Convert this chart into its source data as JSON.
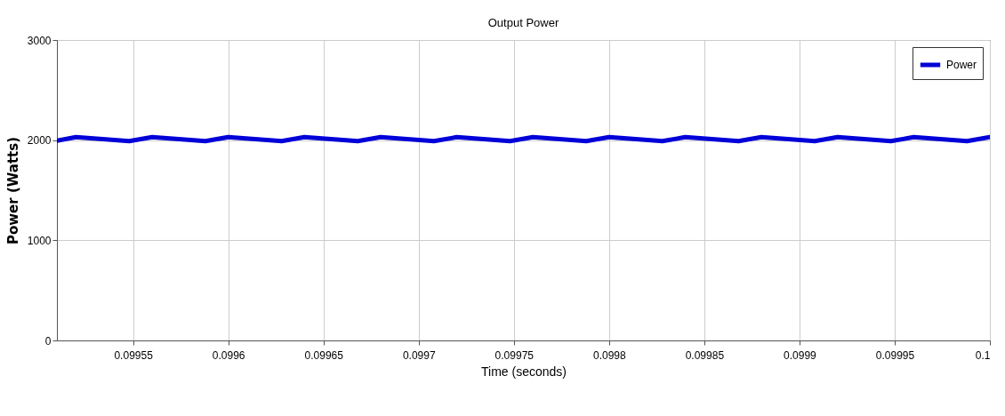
{
  "chart_data": {
    "type": "line",
    "title": "Output Power",
    "xlabel": "Time (seconds)",
    "ylabel": "Power (Watts)",
    "x": [
      0.09951,
      0.09952,
      0.099548,
      0.09956,
      0.099588,
      0.0996,
      0.099628,
      0.09964,
      0.099668,
      0.09968,
      0.099708,
      0.09972,
      0.099748,
      0.09976,
      0.099788,
      0.0998,
      0.099828,
      0.09984,
      0.099868,
      0.09988,
      0.099908,
      0.09992,
      0.099948,
      0.09996,
      0.099988,
      0.1
    ],
    "series": [
      {
        "name": "Power",
        "color": "#0000d8",
        "values": [
          1995,
          2030,
          1990,
          2030,
          1990,
          2030,
          1990,
          2030,
          1990,
          2030,
          1990,
          2030,
          1990,
          2030,
          1990,
          2030,
          1990,
          2030,
          1990,
          2030,
          1990,
          2030,
          1990,
          2030,
          1990,
          2030
        ]
      }
    ],
    "xlim": [
      0.09951,
      0.1
    ],
    "xticks": [
      0.09955,
      0.0996,
      0.09965,
      0.0997,
      0.09975,
      0.0998,
      0.09985,
      0.0999,
      0.09995,
      0.1
    ],
    "ylim": [
      0,
      3000
    ],
    "yticks": [
      0,
      1000,
      2000,
      3000
    ],
    "grid": true,
    "legend": "top right",
    "line_style": "solid"
  }
}
